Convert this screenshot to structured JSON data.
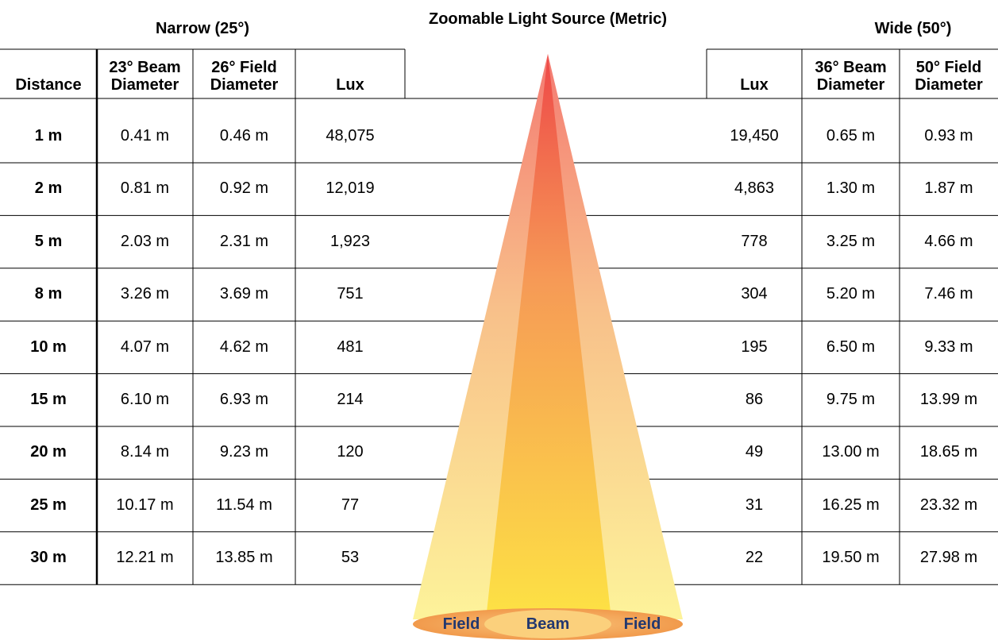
{
  "header": {
    "title": "Zoomable Light Source (Metric)",
    "narrow": "Narrow (25°)",
    "wide": "Wide (50°)"
  },
  "table": {
    "columns": [
      "Distance",
      "23° Beam Diameter",
      "26° Field Diameter",
      "Lux",
      "Lux",
      "36° Beam Diameter",
      "50° Field Diameter"
    ],
    "rows": [
      [
        "1 m",
        "0.41 m",
        "0.46 m",
        "48,075",
        "19,450",
        "0.65 m",
        "0.93 m"
      ],
      [
        "2 m",
        "0.81 m",
        "0.92 m",
        "12,019",
        "4,863",
        "1.30 m",
        "1.87 m"
      ],
      [
        "5 m",
        "2.03 m",
        "2.31 m",
        "1,923",
        "778",
        "3.25 m",
        "4.66 m"
      ],
      [
        "8 m",
        "3.26 m",
        "3.69 m",
        "751",
        "304",
        "5.20 m",
        "7.46 m"
      ],
      [
        "10 m",
        "4.07 m",
        "4.62 m",
        "481",
        "195",
        "6.50 m",
        "9.33 m"
      ],
      [
        "15 m",
        "6.10 m",
        "6.93 m",
        "214",
        "86",
        "9.75 m",
        "13.99 m"
      ],
      [
        "20 m",
        "8.14 m",
        "9.23 m",
        "120",
        "49",
        "13.00 m",
        "18.65 m"
      ],
      [
        "25 m",
        "10.17 m",
        "11.54 m",
        "77",
        "31",
        "16.25 m",
        "23.32 m"
      ],
      [
        "30 m",
        "12.21 m",
        "13.85 m",
        "53",
        "22",
        "19.50 m",
        "27.98 m"
      ]
    ]
  },
  "cone": {
    "labels": [
      "Field",
      "Beam",
      "Field"
    ]
  }
}
